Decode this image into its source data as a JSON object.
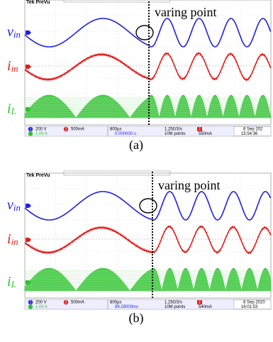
{
  "panels": [
    {
      "header": "Tek PreVu",
      "annotation": "varing point",
      "signals": [
        {
          "symbol": "v",
          "subscript": "in"
        },
        {
          "symbol": "i",
          "subscript": "in"
        },
        {
          "symbol": "i",
          "subscript": "L"
        }
      ],
      "status": {
        "ch1_num": "1",
        "ch1_scale": "200 V",
        "ch2_num": "2",
        "ch2_scale": "500mA",
        "ch3_scale": "1.00 A",
        "timebase": "800µs",
        "position": "0.000000 s",
        "sample_rate": "1.25GS/s",
        "record": "10M points",
        "trig_ch": "2",
        "trig_level": "550mA",
        "date": "8 Sep 202",
        "time": "15:54:36"
      },
      "caption": "(a)"
    },
    {
      "header": "Tek PreVu",
      "annotation": "varing point",
      "signals": [
        {
          "symbol": "v",
          "subscript": "in"
        },
        {
          "symbol": "i",
          "subscript": "in"
        },
        {
          "symbol": "i",
          "subscript": "L"
        }
      ],
      "status": {
        "ch1_num": "1",
        "ch1_scale": "200 V",
        "ch2_num": "2",
        "ch2_scale": "500mA",
        "ch3_scale": "1.00 A",
        "timebase": "800µs",
        "position": "99.28000ms",
        "sample_rate": "1.25GS/s",
        "record": "10M points",
        "trig_ch": "2",
        "trig_level": "540mA",
        "date": "8 Sep 2020",
        "time": "16:01:53"
      },
      "caption": "(b)"
    }
  ]
}
